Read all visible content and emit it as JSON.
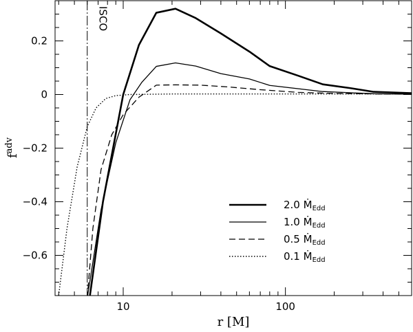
{
  "chart_data": {
    "type": "line",
    "xlabel": "r [M]",
    "ylabel": "f",
    "ylabel_sup": "adv",
    "xscale": "log",
    "xlim": [
      3.8,
      600
    ],
    "ylim": [
      -0.75,
      0.35
    ],
    "x_tick_labels": [
      {
        "value": 10,
        "label": "10"
      },
      {
        "value": 100,
        "label": "100"
      }
    ],
    "y_tick_labels": [
      {
        "value": 0.2,
        "label": "0.2"
      },
      {
        "value": 0,
        "label": "0"
      },
      {
        "value": -0.2,
        "label": "−0.2"
      },
      {
        "value": -0.4,
        "label": "−0.4"
      },
      {
        "value": -0.6,
        "label": "−0.6"
      }
    ],
    "isco": {
      "x": 6.0,
      "label": "ISCO"
    },
    "series": [
      {
        "name": "2.0 ṀEdd",
        "legend_main": "2.0 Ṁ",
        "legend_sub": "Edd",
        "style": "thick",
        "points": [
          [
            6.2,
            -0.76
          ],
          [
            7.5,
            -0.4
          ],
          [
            10.0,
            0.0
          ],
          [
            12.5,
            0.185
          ],
          [
            16.0,
            0.305
          ],
          [
            21.0,
            0.32
          ],
          [
            28.0,
            0.285
          ],
          [
            40.0,
            0.228
          ],
          [
            60.0,
            0.16
          ],
          [
            80.0,
            0.106
          ],
          [
            120.0,
            0.07
          ],
          [
            170.0,
            0.038
          ],
          [
            250.0,
            0.024
          ],
          [
            350.0,
            0.01
          ],
          [
            600.0,
            0.005
          ]
        ]
      },
      {
        "name": "1.0 ṀEdd",
        "legend_main": "1.0 Ṁ",
        "legend_sub": "Edd",
        "style": "solid",
        "points": [
          [
            6.0,
            -0.76
          ],
          [
            7.3,
            -0.43
          ],
          [
            9.0,
            -0.18
          ],
          [
            11.0,
            -0.02
          ],
          [
            13.0,
            0.045
          ],
          [
            16.0,
            0.105
          ],
          [
            21.0,
            0.118
          ],
          [
            28.0,
            0.106
          ],
          [
            40.0,
            0.078
          ],
          [
            60.0,
            0.058
          ],
          [
            80.0,
            0.034
          ],
          [
            170.0,
            0.011
          ],
          [
            350.0,
            0.003
          ],
          [
            600.0,
            0.001
          ]
        ]
      },
      {
        "name": "0.5 ṀEdd",
        "legend_main": "0.5 Ṁ",
        "legend_sub": "Edd",
        "style": "dashed",
        "points": [
          [
            6.0,
            -0.76
          ],
          [
            6.5,
            -0.5
          ],
          [
            7.3,
            -0.28
          ],
          [
            8.5,
            -0.15
          ],
          [
            10.0,
            -0.075
          ],
          [
            12.5,
            -0.01
          ],
          [
            16.0,
            0.035
          ],
          [
            21.0,
            0.036
          ],
          [
            30.0,
            0.035
          ],
          [
            45.0,
            0.028
          ],
          [
            70.0,
            0.018
          ],
          [
            120.0,
            0.008
          ],
          [
            200.0,
            0.004
          ],
          [
            400.0,
            0.002
          ],
          [
            600.0,
            0.001
          ]
        ]
      },
      {
        "name": "0.1 ṀEdd",
        "legend_main": "0.1 Ṁ",
        "legend_sub": "Edd",
        "style": "dotted",
        "points": [
          [
            4.0,
            -0.75
          ],
          [
            4.5,
            -0.5
          ],
          [
            5.2,
            -0.27
          ],
          [
            6.0,
            -0.12
          ],
          [
            6.8,
            -0.05
          ],
          [
            7.8,
            -0.015
          ],
          [
            9.0,
            -0.004
          ],
          [
            11.0,
            0.0
          ],
          [
            20.0,
            0.002
          ],
          [
            600.0,
            0.002
          ]
        ]
      }
    ]
  }
}
